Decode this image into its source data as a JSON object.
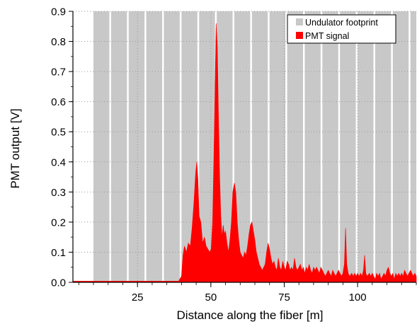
{
  "chart_data": {
    "type": "area",
    "title": "",
    "xlabel": "Distance along the fiber [m]",
    "ylabel": "PMT output [V]",
    "xlim": [
      3,
      120
    ],
    "ylim": [
      0,
      0.9
    ],
    "x_ticks": [
      25,
      50,
      75,
      100
    ],
    "y_ticks": [
      0.0,
      0.1,
      0.2,
      0.3,
      0.4,
      0.5,
      0.6,
      0.7,
      0.8,
      0.9
    ],
    "x_minor_step": 5,
    "grid": "dotted",
    "legend_position": "top-right",
    "series": [
      {
        "name": "Undulator footprint",
        "kind": "bands",
        "color": "#c8c8c8",
        "bands": [
          [
            10,
            15.4
          ],
          [
            16,
            21.4
          ],
          [
            22,
            27.4
          ],
          [
            28,
            33.4
          ],
          [
            34,
            39.4
          ],
          [
            40,
            45.4
          ],
          [
            46,
            51.4
          ],
          [
            52,
            57.4
          ],
          [
            58,
            63.4
          ],
          [
            64,
            69.4
          ],
          [
            70,
            75.4
          ],
          [
            76,
            81.4
          ],
          [
            82,
            87.4
          ],
          [
            88,
            93.4
          ],
          [
            94,
            99.4
          ],
          [
            100,
            105.4
          ],
          [
            106,
            111.4
          ],
          [
            112,
            117.4
          ],
          [
            118,
            120
          ]
        ]
      },
      {
        "name": "PMT signal",
        "kind": "area",
        "color": "#ff0000",
        "points": [
          [
            3,
            0.004
          ],
          [
            10,
            0.004
          ],
          [
            20,
            0.004
          ],
          [
            30,
            0.004
          ],
          [
            39,
            0.004
          ],
          [
            40,
            0.02
          ],
          [
            40.5,
            0.09
          ],
          [
            41,
            0.12
          ],
          [
            41.7,
            0.1
          ],
          [
            42.3,
            0.13
          ],
          [
            43,
            0.12
          ],
          [
            43.6,
            0.18
          ],
          [
            44.2,
            0.26
          ],
          [
            44.8,
            0.36
          ],
          [
            45.2,
            0.4
          ],
          [
            45.6,
            0.34
          ],
          [
            46,
            0.22
          ],
          [
            46.6,
            0.2
          ],
          [
            47.2,
            0.13
          ],
          [
            47.8,
            0.15
          ],
          [
            48.4,
            0.12
          ],
          [
            49,
            0.11
          ],
          [
            49.6,
            0.1
          ],
          [
            50.1,
            0.11
          ],
          [
            50.6,
            0.2
          ],
          [
            51,
            0.4
          ],
          [
            51.4,
            0.62
          ],
          [
            51.8,
            0.86
          ],
          [
            52.2,
            0.78
          ],
          [
            52.6,
            0.55
          ],
          [
            53,
            0.35
          ],
          [
            53.4,
            0.22
          ],
          [
            53.8,
            0.15
          ],
          [
            54.2,
            0.19
          ],
          [
            54.6,
            0.16
          ],
          [
            55,
            0.17
          ],
          [
            55.5,
            0.13
          ],
          [
            56,
            0.1
          ],
          [
            56.5,
            0.14
          ],
          [
            57,
            0.2
          ],
          [
            57.5,
            0.3
          ],
          [
            58,
            0.33
          ],
          [
            58.5,
            0.3
          ],
          [
            59,
            0.2
          ],
          [
            59.5,
            0.14
          ],
          [
            60,
            0.1
          ],
          [
            60.5,
            0.09
          ],
          [
            61,
            0.08
          ],
          [
            61.5,
            0.1
          ],
          [
            62,
            0.09
          ],
          [
            62.5,
            0.12
          ],
          [
            63,
            0.16
          ],
          [
            63.5,
            0.19
          ],
          [
            64,
            0.2
          ],
          [
            64.5,
            0.17
          ],
          [
            65,
            0.14
          ],
          [
            65.5,
            0.1
          ],
          [
            66,
            0.08
          ],
          [
            66.5,
            0.06
          ],
          [
            67,
            0.05
          ],
          [
            67.5,
            0.04
          ],
          [
            68,
            0.05
          ],
          [
            68.5,
            0.06
          ],
          [
            69,
            0.1
          ],
          [
            69.5,
            0.13
          ],
          [
            70,
            0.11
          ],
          [
            70.5,
            0.08
          ],
          [
            71,
            0.06
          ],
          [
            71.5,
            0.07
          ],
          [
            72,
            0.05
          ],
          [
            72.5,
            0.04
          ],
          [
            73,
            0.08
          ],
          [
            73.5,
            0.05
          ],
          [
            74,
            0.04
          ],
          [
            74.5,
            0.07
          ],
          [
            75,
            0.05
          ],
          [
            75.5,
            0.04
          ],
          [
            76,
            0.07
          ],
          [
            76.5,
            0.06
          ],
          [
            77,
            0.04
          ],
          [
            77.5,
            0.05
          ],
          [
            78,
            0.04
          ],
          [
            78.5,
            0.08
          ],
          [
            79,
            0.05
          ],
          [
            79.5,
            0.04
          ],
          [
            80,
            0.05
          ],
          [
            80.5,
            0.06
          ],
          [
            81,
            0.04
          ],
          [
            81.5,
            0.05
          ],
          [
            82,
            0.03
          ],
          [
            82.5,
            0.05
          ],
          [
            83,
            0.04
          ],
          [
            83.5,
            0.06
          ],
          [
            84,
            0.04
          ],
          [
            84.5,
            0.03
          ],
          [
            85,
            0.05
          ],
          [
            85.5,
            0.04
          ],
          [
            86,
            0.05
          ],
          [
            86.5,
            0.04
          ],
          [
            87,
            0.03
          ],
          [
            87.5,
            0.05
          ],
          [
            88,
            0.04
          ],
          [
            88.5,
            0.03
          ],
          [
            89,
            0.02
          ],
          [
            89.5,
            0.03
          ],
          [
            90,
            0.04
          ],
          [
            90.5,
            0.03
          ],
          [
            91,
            0.02
          ],
          [
            91.5,
            0.04
          ],
          [
            92,
            0.03
          ],
          [
            92.5,
            0.02
          ],
          [
            93,
            0.03
          ],
          [
            93.5,
            0.04
          ],
          [
            94,
            0.03
          ],
          [
            94.5,
            0.02
          ],
          [
            95,
            0.03
          ],
          [
            95.5,
            0.06
          ],
          [
            95.9,
            0.18
          ],
          [
            96.3,
            0.06
          ],
          [
            96.8,
            0.03
          ],
          [
            97.3,
            0.02
          ],
          [
            98,
            0.03
          ],
          [
            98.5,
            0.02
          ],
          [
            99,
            0.03
          ],
          [
            99.5,
            0.02
          ],
          [
            100,
            0.03
          ],
          [
            100.5,
            0.02
          ],
          [
            101,
            0.03
          ],
          [
            101.5,
            0.02
          ],
          [
            102,
            0.04
          ],
          [
            102.4,
            0.09
          ],
          [
            102.8,
            0.03
          ],
          [
            103.3,
            0.02
          ],
          [
            104,
            0.03
          ],
          [
            104.5,
            0.02
          ],
          [
            105,
            0.03
          ],
          [
            105.5,
            0.02
          ],
          [
            106,
            0.01
          ],
          [
            106.5,
            0.03
          ],
          [
            107,
            0.02
          ],
          [
            107.5,
            0.03
          ],
          [
            108,
            0.01
          ],
          [
            108.5,
            0.02
          ],
          [
            109,
            0.03
          ],
          [
            109.5,
            0.02
          ],
          [
            110,
            0.04
          ],
          [
            110.5,
            0.05
          ],
          [
            111,
            0.03
          ],
          [
            111.5,
            0.02
          ],
          [
            112,
            0.03
          ],
          [
            112.5,
            0.01
          ],
          [
            113,
            0.03
          ],
          [
            113.5,
            0.02
          ],
          [
            114,
            0.03
          ],
          [
            114.5,
            0.02
          ],
          [
            115,
            0.03
          ],
          [
            115.5,
            0.02
          ],
          [
            116,
            0.04
          ],
          [
            116.5,
            0.03
          ],
          [
            117,
            0.02
          ],
          [
            117.5,
            0.03
          ],
          [
            118,
            0.04
          ],
          [
            118.5,
            0.03
          ],
          [
            119,
            0.02
          ],
          [
            119.5,
            0.03
          ],
          [
            120,
            0.02
          ]
        ]
      }
    ]
  }
}
